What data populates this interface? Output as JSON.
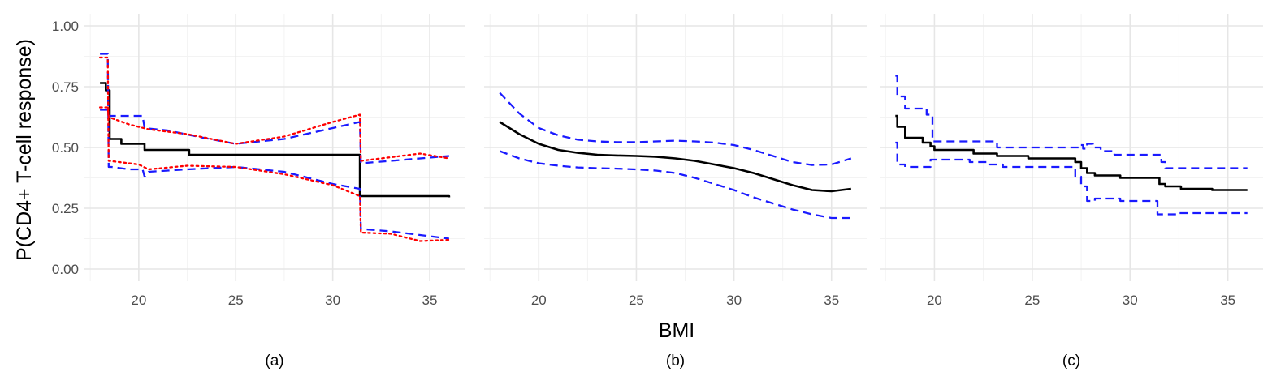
{
  "figure": {
    "xlabel": "BMI",
    "ylabel": "P(CD4+ T-cell response)"
  },
  "colors": {
    "estimate": "#000000",
    "band_blue": "#1a1aff",
    "band_red": "#ff0000",
    "grid_major": "#e6e6e6",
    "grid_minor": "#f3f3f3"
  },
  "chart_data": [
    {
      "type": "line",
      "caption": "(a)",
      "xlim": [
        17.2,
        36.8
      ],
      "ylim": [
        -0.05,
        1.05
      ],
      "x_ticks": [
        20,
        25,
        30,
        35
      ],
      "x_tick_labels": [
        "20",
        "25",
        "30",
        "35"
      ],
      "y_ticks": [
        0,
        0.25,
        0.5,
        0.75,
        1.0
      ],
      "y_tick_labels": [
        "0.00",
        "0.25",
        "0.50",
        "0.75",
        "1.00"
      ],
      "grid": true,
      "series": [
        {
          "style": "solid",
          "color": "#000000",
          "step": true,
          "x": [
            18.0,
            18.3,
            18.5,
            19.1,
            20.3,
            22.6,
            31.4,
            36.0
          ],
          "y": [
            0.765,
            0.735,
            0.535,
            0.515,
            0.49,
            0.47,
            0.3,
            0.295
          ]
        },
        {
          "style": "dashed",
          "color": "#1a1aff",
          "step": false,
          "x": [
            18.0,
            18.4,
            18.45,
            18.6,
            19.5,
            20.2,
            20.3,
            20.5,
            22.5,
            25.0,
            27.5,
            30.0,
            31.4,
            31.45,
            33.0,
            36.0
          ],
          "y": [
            0.885,
            0.885,
            0.42,
            0.42,
            0.41,
            0.41,
            0.38,
            0.4,
            0.41,
            0.42,
            0.4,
            0.35,
            0.33,
            0.165,
            0.155,
            0.125
          ]
        },
        {
          "style": "dashed",
          "color": "#1a1aff",
          "step": false,
          "x": [
            18.0,
            18.4,
            18.45,
            20.2,
            20.3,
            21.5,
            23.0,
            25.0,
            27.5,
            30.0,
            31.4,
            31.45,
            33.0,
            36.0
          ],
          "y": [
            0.655,
            0.655,
            0.63,
            0.63,
            0.58,
            0.57,
            0.545,
            0.515,
            0.535,
            0.58,
            0.605,
            0.435,
            0.445,
            0.465
          ]
        },
        {
          "style": "dotted",
          "color": "#ff0000",
          "step": false,
          "x": [
            18.0,
            18.4,
            18.45,
            19.0,
            20.0,
            20.5,
            22.5,
            25.0,
            27.5,
            30.0,
            31.4,
            31.45,
            33.0,
            34.5,
            36.0
          ],
          "y": [
            0.87,
            0.87,
            0.445,
            0.44,
            0.43,
            0.41,
            0.425,
            0.42,
            0.39,
            0.345,
            0.3,
            0.15,
            0.145,
            0.115,
            0.12
          ]
        },
        {
          "style": "dotted",
          "color": "#ff0000",
          "step": false,
          "x": [
            18.0,
            18.4,
            18.45,
            19.5,
            20.5,
            22.5,
            25.0,
            27.5,
            30.0,
            31.4,
            31.45,
            33.0,
            34.5,
            36.0
          ],
          "y": [
            0.665,
            0.665,
            0.625,
            0.595,
            0.575,
            0.555,
            0.515,
            0.545,
            0.605,
            0.635,
            0.445,
            0.46,
            0.475,
            0.455
          ]
        }
      ]
    },
    {
      "type": "line",
      "caption": "(b)",
      "xlim": [
        17.2,
        36.8
      ],
      "ylim": [
        -0.05,
        1.05
      ],
      "x_ticks": [
        20,
        25,
        30,
        35
      ],
      "x_tick_labels": [
        "20",
        "25",
        "30",
        "35"
      ],
      "y_ticks": [
        0,
        0.25,
        0.5,
        0.75,
        1.0
      ],
      "grid": true,
      "series": [
        {
          "style": "solid",
          "color": "#000000",
          "step": false,
          "x": [
            18,
            19,
            20,
            21,
            22,
            23,
            24,
            25,
            26,
            27,
            28,
            29,
            30,
            31,
            32,
            33,
            34,
            35,
            36
          ],
          "y": [
            0.605,
            0.555,
            0.515,
            0.49,
            0.478,
            0.47,
            0.467,
            0.465,
            0.462,
            0.455,
            0.445,
            0.43,
            0.415,
            0.395,
            0.37,
            0.345,
            0.325,
            0.32,
            0.33
          ]
        },
        {
          "style": "dashed",
          "color": "#1a1aff",
          "step": false,
          "x": [
            18,
            19,
            20,
            21,
            22,
            23,
            24,
            25,
            26,
            27,
            28,
            29,
            30,
            31,
            32,
            33,
            34,
            35,
            36
          ],
          "y": [
            0.725,
            0.64,
            0.58,
            0.55,
            0.532,
            0.525,
            0.522,
            0.522,
            0.525,
            0.528,
            0.525,
            0.52,
            0.51,
            0.49,
            0.465,
            0.44,
            0.428,
            0.43,
            0.455
          ]
        },
        {
          "style": "dashed",
          "color": "#1a1aff",
          "step": false,
          "x": [
            18,
            19,
            20,
            21,
            22,
            23,
            24,
            25,
            26,
            27,
            28,
            29,
            30,
            31,
            32,
            33,
            34,
            35,
            36
          ],
          "y": [
            0.485,
            0.455,
            0.435,
            0.425,
            0.418,
            0.415,
            0.413,
            0.41,
            0.405,
            0.395,
            0.375,
            0.35,
            0.325,
            0.295,
            0.27,
            0.245,
            0.225,
            0.21,
            0.21
          ]
        }
      ]
    },
    {
      "type": "line",
      "caption": "(c)",
      "xlim": [
        17.2,
        36.8
      ],
      "ylim": [
        -0.05,
        1.05
      ],
      "x_ticks": [
        20,
        25,
        30,
        35
      ],
      "x_tick_labels": [
        "20",
        "25",
        "30",
        "35"
      ],
      "y_ticks": [
        0,
        0.25,
        0.5,
        0.75,
        1.0
      ],
      "grid": true,
      "series": [
        {
          "style": "solid",
          "color": "#000000",
          "step": true,
          "x": [
            18.0,
            18.1,
            18.5,
            19.4,
            19.8,
            20.0,
            22.0,
            23.2,
            24.8,
            27.2,
            27.5,
            27.8,
            28.2,
            29.5,
            31.5,
            31.8,
            32.6,
            34.2,
            36.0
          ],
          "y": [
            0.63,
            0.585,
            0.54,
            0.52,
            0.505,
            0.49,
            0.475,
            0.465,
            0.455,
            0.44,
            0.415,
            0.395,
            0.385,
            0.375,
            0.35,
            0.34,
            0.33,
            0.325,
            0.325
          ]
        },
        {
          "style": "dashed",
          "color": "#1a1aff",
          "step": true,
          "x": [
            18.0,
            18.1,
            18.5,
            19.4,
            19.6,
            19.9,
            23.2,
            27.2,
            27.4,
            27.6,
            27.8,
            28.1,
            28.5,
            29.2,
            31.6,
            31.8,
            36.0
          ],
          "y": [
            0.795,
            0.71,
            0.66,
            0.66,
            0.635,
            0.525,
            0.5,
            0.5,
            0.51,
            0.495,
            0.515,
            0.5,
            0.485,
            0.47,
            0.44,
            0.415,
            0.415
          ]
        },
        {
          "style": "dashed",
          "color": "#1a1aff",
          "step": true,
          "x": [
            18.0,
            18.1,
            18.5,
            19.4,
            19.8,
            21.8,
            22.8,
            23.5,
            27.2,
            27.5,
            27.8,
            28.2,
            29.5,
            31.4,
            32.5,
            36.0
          ],
          "y": [
            0.52,
            0.43,
            0.42,
            0.42,
            0.45,
            0.44,
            0.43,
            0.42,
            0.38,
            0.34,
            0.28,
            0.29,
            0.28,
            0.225,
            0.23,
            0.23
          ]
        }
      ]
    }
  ]
}
